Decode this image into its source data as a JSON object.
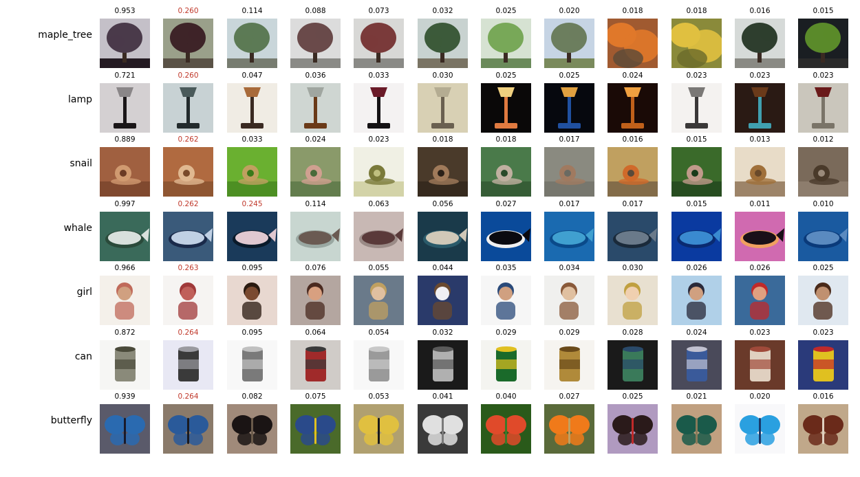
{
  "colors": {
    "highlight_score": "#c0392b",
    "normal_score": "#000000"
  },
  "rows": [
    {
      "label": "maple_tree",
      "items": [
        {
          "score": "0.953",
          "highlight": false,
          "icon": "tree",
          "colors": [
            "#c4c0c8",
            "#4a3a4a",
            "#241a22"
          ]
        },
        {
          "score": "0.260",
          "highlight": true,
          "icon": "tree",
          "colors": [
            "#9aa08a",
            "#3e2428",
            "#5a5246"
          ]
        },
        {
          "score": "0.114",
          "highlight": false,
          "icon": "tree",
          "colors": [
            "#c9d6da",
            "#5c7a55",
            "#777c70"
          ]
        },
        {
          "score": "0.088",
          "highlight": false,
          "icon": "tree",
          "colors": [
            "#dcdcdc",
            "#6a4a4a",
            "#8a8a86"
          ]
        },
        {
          "score": "0.073",
          "highlight": false,
          "icon": "tree",
          "colors": [
            "#d8d8d6",
            "#7a3a3a",
            "#8a8a86"
          ]
        },
        {
          "score": "0.032",
          "highlight": false,
          "icon": "tree",
          "colors": [
            "#c8d2d0",
            "#3c5a3a",
            "#7a7464"
          ]
        },
        {
          "score": "0.025",
          "highlight": false,
          "icon": "tree",
          "colors": [
            "#d6e2d2",
            "#78a858",
            "#6a8a5a"
          ]
        },
        {
          "score": "0.020",
          "highlight": false,
          "icon": "tree",
          "colors": [
            "#c6d4e4",
            "#6c7e5e",
            "#7a8a5c"
          ]
        },
        {
          "score": "0.018",
          "highlight": false,
          "icon": "bush",
          "colors": [
            "#a05a30",
            "#e0782a",
            "#5a4a38"
          ]
        },
        {
          "score": "0.018",
          "highlight": false,
          "icon": "bush",
          "colors": [
            "#8a8a3a",
            "#e0c040",
            "#6a6a2a"
          ]
        },
        {
          "score": "0.016",
          "highlight": false,
          "icon": "tree",
          "colors": [
            "#d6dad8",
            "#2e3e2e",
            "#8a8a84"
          ]
        },
        {
          "score": "0.015",
          "highlight": false,
          "icon": "tree",
          "colors": [
            "#1a1e22",
            "#5a8a2a",
            "#2a2a2a"
          ]
        }
      ]
    },
    {
      "label": "lamp",
      "items": [
        {
          "score": "0.721",
          "highlight": false,
          "icon": "lamp",
          "colors": [
            "#d4d0d2",
            "#1a1618",
            "#8a8688"
          ]
        },
        {
          "score": "0.260",
          "highlight": true,
          "icon": "lamp",
          "colors": [
            "#c8d2d4",
            "#222a2c",
            "#4a5a5a"
          ]
        },
        {
          "score": "0.047",
          "highlight": false,
          "icon": "lamp",
          "colors": [
            "#f0ece4",
            "#3a2a22",
            "#a86a3a"
          ]
        },
        {
          "score": "0.036",
          "highlight": false,
          "icon": "lamp",
          "colors": [
            "#cfd6d2",
            "#6a3a18",
            "#a0a6a0"
          ]
        },
        {
          "score": "0.033",
          "highlight": false,
          "icon": "lamp",
          "colors": [
            "#f4f2f2",
            "#141214",
            "#6a1a28"
          ]
        },
        {
          "score": "0.030",
          "highlight": false,
          "icon": "lamp",
          "colors": [
            "#d8d0b4",
            "#6a6050",
            "#b4ac92"
          ]
        },
        {
          "score": "0.025",
          "highlight": false,
          "icon": "lamp",
          "colors": [
            "#0a0808",
            "#e07a40",
            "#f0d080"
          ]
        },
        {
          "score": "0.025",
          "highlight": false,
          "icon": "lamp",
          "colors": [
            "#06080e",
            "#2050a0",
            "#e0a040"
          ]
        },
        {
          "score": "0.024",
          "highlight": false,
          "icon": "lamp",
          "colors": [
            "#1a0a06",
            "#c0601a",
            "#f0a040"
          ]
        },
        {
          "score": "0.023",
          "highlight": false,
          "icon": "lamp",
          "colors": [
            "#f4f2f0",
            "#3a3838",
            "#7a7876"
          ]
        },
        {
          "score": "0.023",
          "highlight": false,
          "icon": "lamp",
          "colors": [
            "#2a1a14",
            "#40a0b0",
            "#6a3a1a"
          ]
        },
        {
          "score": "0.023",
          "highlight": false,
          "icon": "lamp",
          "colors": [
            "#cac6bc",
            "#7a7468",
            "#6a1a1a"
          ]
        }
      ]
    },
    {
      "label": "snail",
      "items": [
        {
          "score": "0.889",
          "highlight": false,
          "icon": "snail",
          "colors": [
            "#a06040",
            "#d09a70",
            "#6a3a24"
          ]
        },
        {
          "score": "0.262",
          "highlight": true,
          "icon": "snail",
          "colors": [
            "#b06a40",
            "#e0b890",
            "#7a4a2a"
          ]
        },
        {
          "score": "0.033",
          "highlight": false,
          "icon": "snail",
          "colors": [
            "#6ab030",
            "#c0a060",
            "#3a7a1a"
          ]
        },
        {
          "score": "0.024",
          "highlight": false,
          "icon": "snail",
          "colors": [
            "#8a9a6a",
            "#d0a090",
            "#4a6a3a"
          ]
        },
        {
          "score": "0.023",
          "highlight": false,
          "icon": "snail",
          "colors": [
            "#f0f0e4",
            "#7a7a3a",
            "#c0c080"
          ]
        },
        {
          "score": "0.018",
          "highlight": false,
          "icon": "snail",
          "colors": [
            "#4a3a2a",
            "#a07a5a",
            "#2a2018"
          ]
        },
        {
          "score": "0.018",
          "highlight": false,
          "icon": "snail",
          "colors": [
            "#4a7a4a",
            "#c0b0a0",
            "#2a4a2a"
          ]
        },
        {
          "score": "0.017",
          "highlight": false,
          "icon": "snail",
          "colors": [
            "#8a8a80",
            "#a07a60",
            "#6a6a62"
          ]
        },
        {
          "score": "0.016",
          "highlight": false,
          "icon": "snail",
          "colors": [
            "#c0a060",
            "#d06a2a",
            "#5a4a3a"
          ]
        },
        {
          "score": "0.015",
          "highlight": false,
          "icon": "snail",
          "colors": [
            "#3a6a2a",
            "#c09a8a",
            "#1a3a1a"
          ]
        },
        {
          "score": "0.013",
          "highlight": false,
          "icon": "snail",
          "colors": [
            "#e8dcc8",
            "#a0703a",
            "#6a4a2a"
          ]
        },
        {
          "score": "0.012",
          "highlight": false,
          "icon": "snail",
          "colors": [
            "#7a6a5a",
            "#4a3a2a",
            "#9a8a7a"
          ]
        }
      ]
    },
    {
      "label": "whale",
      "items": [
        {
          "score": "0.997",
          "highlight": false,
          "icon": "whale",
          "colors": [
            "#3a6a5a",
            "#d8e0dc",
            "#2a4a3a"
          ]
        },
        {
          "score": "0.262",
          "highlight": true,
          "icon": "whale",
          "colors": [
            "#3a5a7a",
            "#c0d0e4",
            "#1a2a4a"
          ]
        },
        {
          "score": "0.245",
          "highlight": true,
          "icon": "whale",
          "colors": [
            "#1a3a5a",
            "#e0c8d0",
            "#0a1a2a"
          ]
        },
        {
          "score": "0.114",
          "highlight": false,
          "icon": "whale",
          "colors": [
            "#c8d6d0",
            "#6a5a52",
            "#9aa8a2"
          ]
        },
        {
          "score": "0.063",
          "highlight": false,
          "icon": "whale",
          "colors": [
            "#c8b8b4",
            "#5a3a3a",
            "#9a8a86"
          ]
        },
        {
          "score": "0.056",
          "highlight": false,
          "icon": "whale",
          "colors": [
            "#1a3a4a",
            "#d0c8b8",
            "#2a5a6a"
          ]
        },
        {
          "score": "0.027",
          "highlight": false,
          "icon": "whale",
          "colors": [
            "#0a4a9a",
            "#0a0a10",
            "#f0f0f0"
          ]
        },
        {
          "score": "0.017",
          "highlight": false,
          "icon": "whale",
          "colors": [
            "#1a6ab0",
            "#40a0d0",
            "#0a4a8a"
          ]
        },
        {
          "score": "0.017",
          "highlight": false,
          "icon": "whale",
          "colors": [
            "#2a4a6a",
            "#6a7a8a",
            "#1a2a3a"
          ]
        },
        {
          "score": "0.015",
          "highlight": false,
          "icon": "whale",
          "colors": [
            "#0a3aa0",
            "#3a8ad0",
            "#0a2a70"
          ]
        },
        {
          "score": "0.011",
          "highlight": false,
          "icon": "whale",
          "colors": [
            "#d06ab0",
            "#1a1018",
            "#f0a060"
          ]
        },
        {
          "score": "0.010",
          "highlight": false,
          "icon": "whale",
          "colors": [
            "#1a5aa0",
            "#5a8ac0",
            "#0a3a7a"
          ]
        }
      ]
    },
    {
      "label": "girl",
      "items": [
        {
          "score": "0.966",
          "highlight": false,
          "icon": "person",
          "colors": [
            "#f4f0ea",
            "#d0a080",
            "#c06a5a"
          ]
        },
        {
          "score": "0.263",
          "highlight": true,
          "icon": "person",
          "colors": [
            "#f6f4f2",
            "#c0605a",
            "#a03a3a"
          ]
        },
        {
          "score": "0.095",
          "highlight": false,
          "icon": "person",
          "colors": [
            "#e8d8d0",
            "#7a4a30",
            "#2a1a10"
          ]
        },
        {
          "score": "0.076",
          "highlight": false,
          "icon": "person",
          "colors": [
            "#b4a6a0",
            "#d8a080",
            "#4a2a20"
          ]
        },
        {
          "score": "0.055",
          "highlight": false,
          "icon": "person",
          "colors": [
            "#6a7a8a",
            "#e0c0a0",
            "#c0a060"
          ]
        },
        {
          "score": "0.044",
          "highlight": false,
          "icon": "person",
          "colors": [
            "#2a3a6a",
            "#f0f0f4",
            "#6a4a30"
          ]
        },
        {
          "score": "0.035",
          "highlight": false,
          "icon": "person",
          "colors": [
            "#f6f6f6",
            "#d0a080",
            "#2a4a7a"
          ]
        },
        {
          "score": "0.034",
          "highlight": false,
          "icon": "person",
          "colors": [
            "#f0f0ee",
            "#e0c0a0",
            "#8a5a3a"
          ]
        },
        {
          "score": "0.030",
          "highlight": false,
          "icon": "person",
          "colors": [
            "#e8e0d0",
            "#f0d0b0",
            "#c0a040"
          ]
        },
        {
          "score": "0.026",
          "highlight": false,
          "icon": "person",
          "colors": [
            "#b0d0e8",
            "#d0a080",
            "#2a2a3a"
          ]
        },
        {
          "score": "0.026",
          "highlight": false,
          "icon": "person",
          "colors": [
            "#3a6a9a",
            "#e0a080",
            "#c02a2a"
          ]
        },
        {
          "score": "0.025",
          "highlight": false,
          "icon": "person",
          "colors": [
            "#e0e8f0",
            "#c09070",
            "#4a2a1a"
          ]
        }
      ]
    },
    {
      "label": "can",
      "items": [
        {
          "score": "0.872",
          "highlight": false,
          "icon": "can",
          "colors": [
            "#f6f6f4",
            "#8a8a7a",
            "#4a4a3a"
          ]
        },
        {
          "score": "0.264",
          "highlight": true,
          "icon": "can",
          "colors": [
            "#e8e8f4",
            "#3a3a3a",
            "#9a9aa0"
          ]
        },
        {
          "score": "0.095",
          "highlight": false,
          "icon": "can",
          "colors": [
            "#f8f8f8",
            "#7a7a7a",
            "#c0c0c0"
          ]
        },
        {
          "score": "0.064",
          "highlight": false,
          "icon": "can",
          "colors": [
            "#d0ccc8",
            "#a02a2a",
            "#3a3a3a"
          ]
        },
        {
          "score": "0.054",
          "highlight": false,
          "icon": "can",
          "colors": [
            "#f8f8f8",
            "#9a9a9a",
            "#c8c8c8"
          ]
        },
        {
          "score": "0.032",
          "highlight": false,
          "icon": "can",
          "colors": [
            "#1a1a1a",
            "#b0b0b0",
            "#5a5a5a"
          ]
        },
        {
          "score": "0.029",
          "highlight": false,
          "icon": "can",
          "colors": [
            "#f4f4f0",
            "#1a6a2a",
            "#e0c020"
          ]
        },
        {
          "score": "0.029",
          "highlight": false,
          "icon": "can",
          "colors": [
            "#f6f4f0",
            "#b08a3a",
            "#6a4a1a"
          ]
        },
        {
          "score": "0.028",
          "highlight": false,
          "icon": "can",
          "colors": [
            "#1a1a1a",
            "#3a7a5a",
            "#2a4a6a"
          ]
        },
        {
          "score": "0.024",
          "highlight": false,
          "icon": "can",
          "colors": [
            "#4a4a5a",
            "#3a5a9a",
            "#c0c0d0"
          ]
        },
        {
          "score": "0.023",
          "highlight": false,
          "icon": "can",
          "colors": [
            "#6a3a2a",
            "#e0d0c0",
            "#a04a3a"
          ]
        },
        {
          "score": "0.023",
          "highlight": false,
          "icon": "can",
          "colors": [
            "#2a3a7a",
            "#e0c020",
            "#c02a2a"
          ]
        }
      ]
    },
    {
      "label": "butterfly",
      "items": [
        {
          "score": "0.939",
          "highlight": false,
          "icon": "butterfly",
          "colors": [
            "#5a5a6a",
            "#2a6ab0",
            "#1a1a2a"
          ]
        },
        {
          "score": "0.264",
          "highlight": true,
          "icon": "butterfly",
          "colors": [
            "#8a7a6a",
            "#2a5a9a",
            "#1a1a20"
          ]
        },
        {
          "score": "0.082",
          "highlight": false,
          "icon": "butterfly",
          "colors": [
            "#a08a7a",
            "#1a1414",
            "#6a5a4a"
          ]
        },
        {
          "score": "0.075",
          "highlight": false,
          "icon": "butterfly",
          "colors": [
            "#4a6a2a",
            "#2a4a8a",
            "#e0c020"
          ]
        },
        {
          "score": "0.053",
          "highlight": false,
          "icon": "butterfly",
          "colors": [
            "#b0a070",
            "#e0c040",
            "#1a1a1a"
          ]
        },
        {
          "score": "0.041",
          "highlight": false,
          "icon": "butterfly",
          "colors": [
            "#3a3a3a",
            "#e0e0e0",
            "#7a7a7a"
          ]
        },
        {
          "score": "0.040",
          "highlight": false,
          "icon": "butterfly",
          "colors": [
            "#2a5a1a",
            "#e04a2a",
            "#3a7a2a"
          ]
        },
        {
          "score": "0.027",
          "highlight": false,
          "icon": "butterfly",
          "colors": [
            "#5a6a3a",
            "#f07a1a",
            "#c0a060"
          ]
        },
        {
          "score": "0.025",
          "highlight": false,
          "icon": "butterfly",
          "colors": [
            "#b09ac0",
            "#2a1a1a",
            "#c02a2a"
          ]
        },
        {
          "score": "0.021",
          "highlight": false,
          "icon": "butterfly",
          "colors": [
            "#c0a080",
            "#1a5a4a",
            "#8a7a5a"
          ]
        },
        {
          "score": "0.020",
          "highlight": false,
          "icon": "butterfly",
          "colors": [
            "#f8f8fa",
            "#2aa0e0",
            "#1a3a6a"
          ]
        },
        {
          "score": "0.016",
          "highlight": false,
          "icon": "butterfly",
          "colors": [
            "#c0a88a",
            "#6a2a1a",
            "#e0d0c0"
          ]
        }
      ]
    }
  ]
}
